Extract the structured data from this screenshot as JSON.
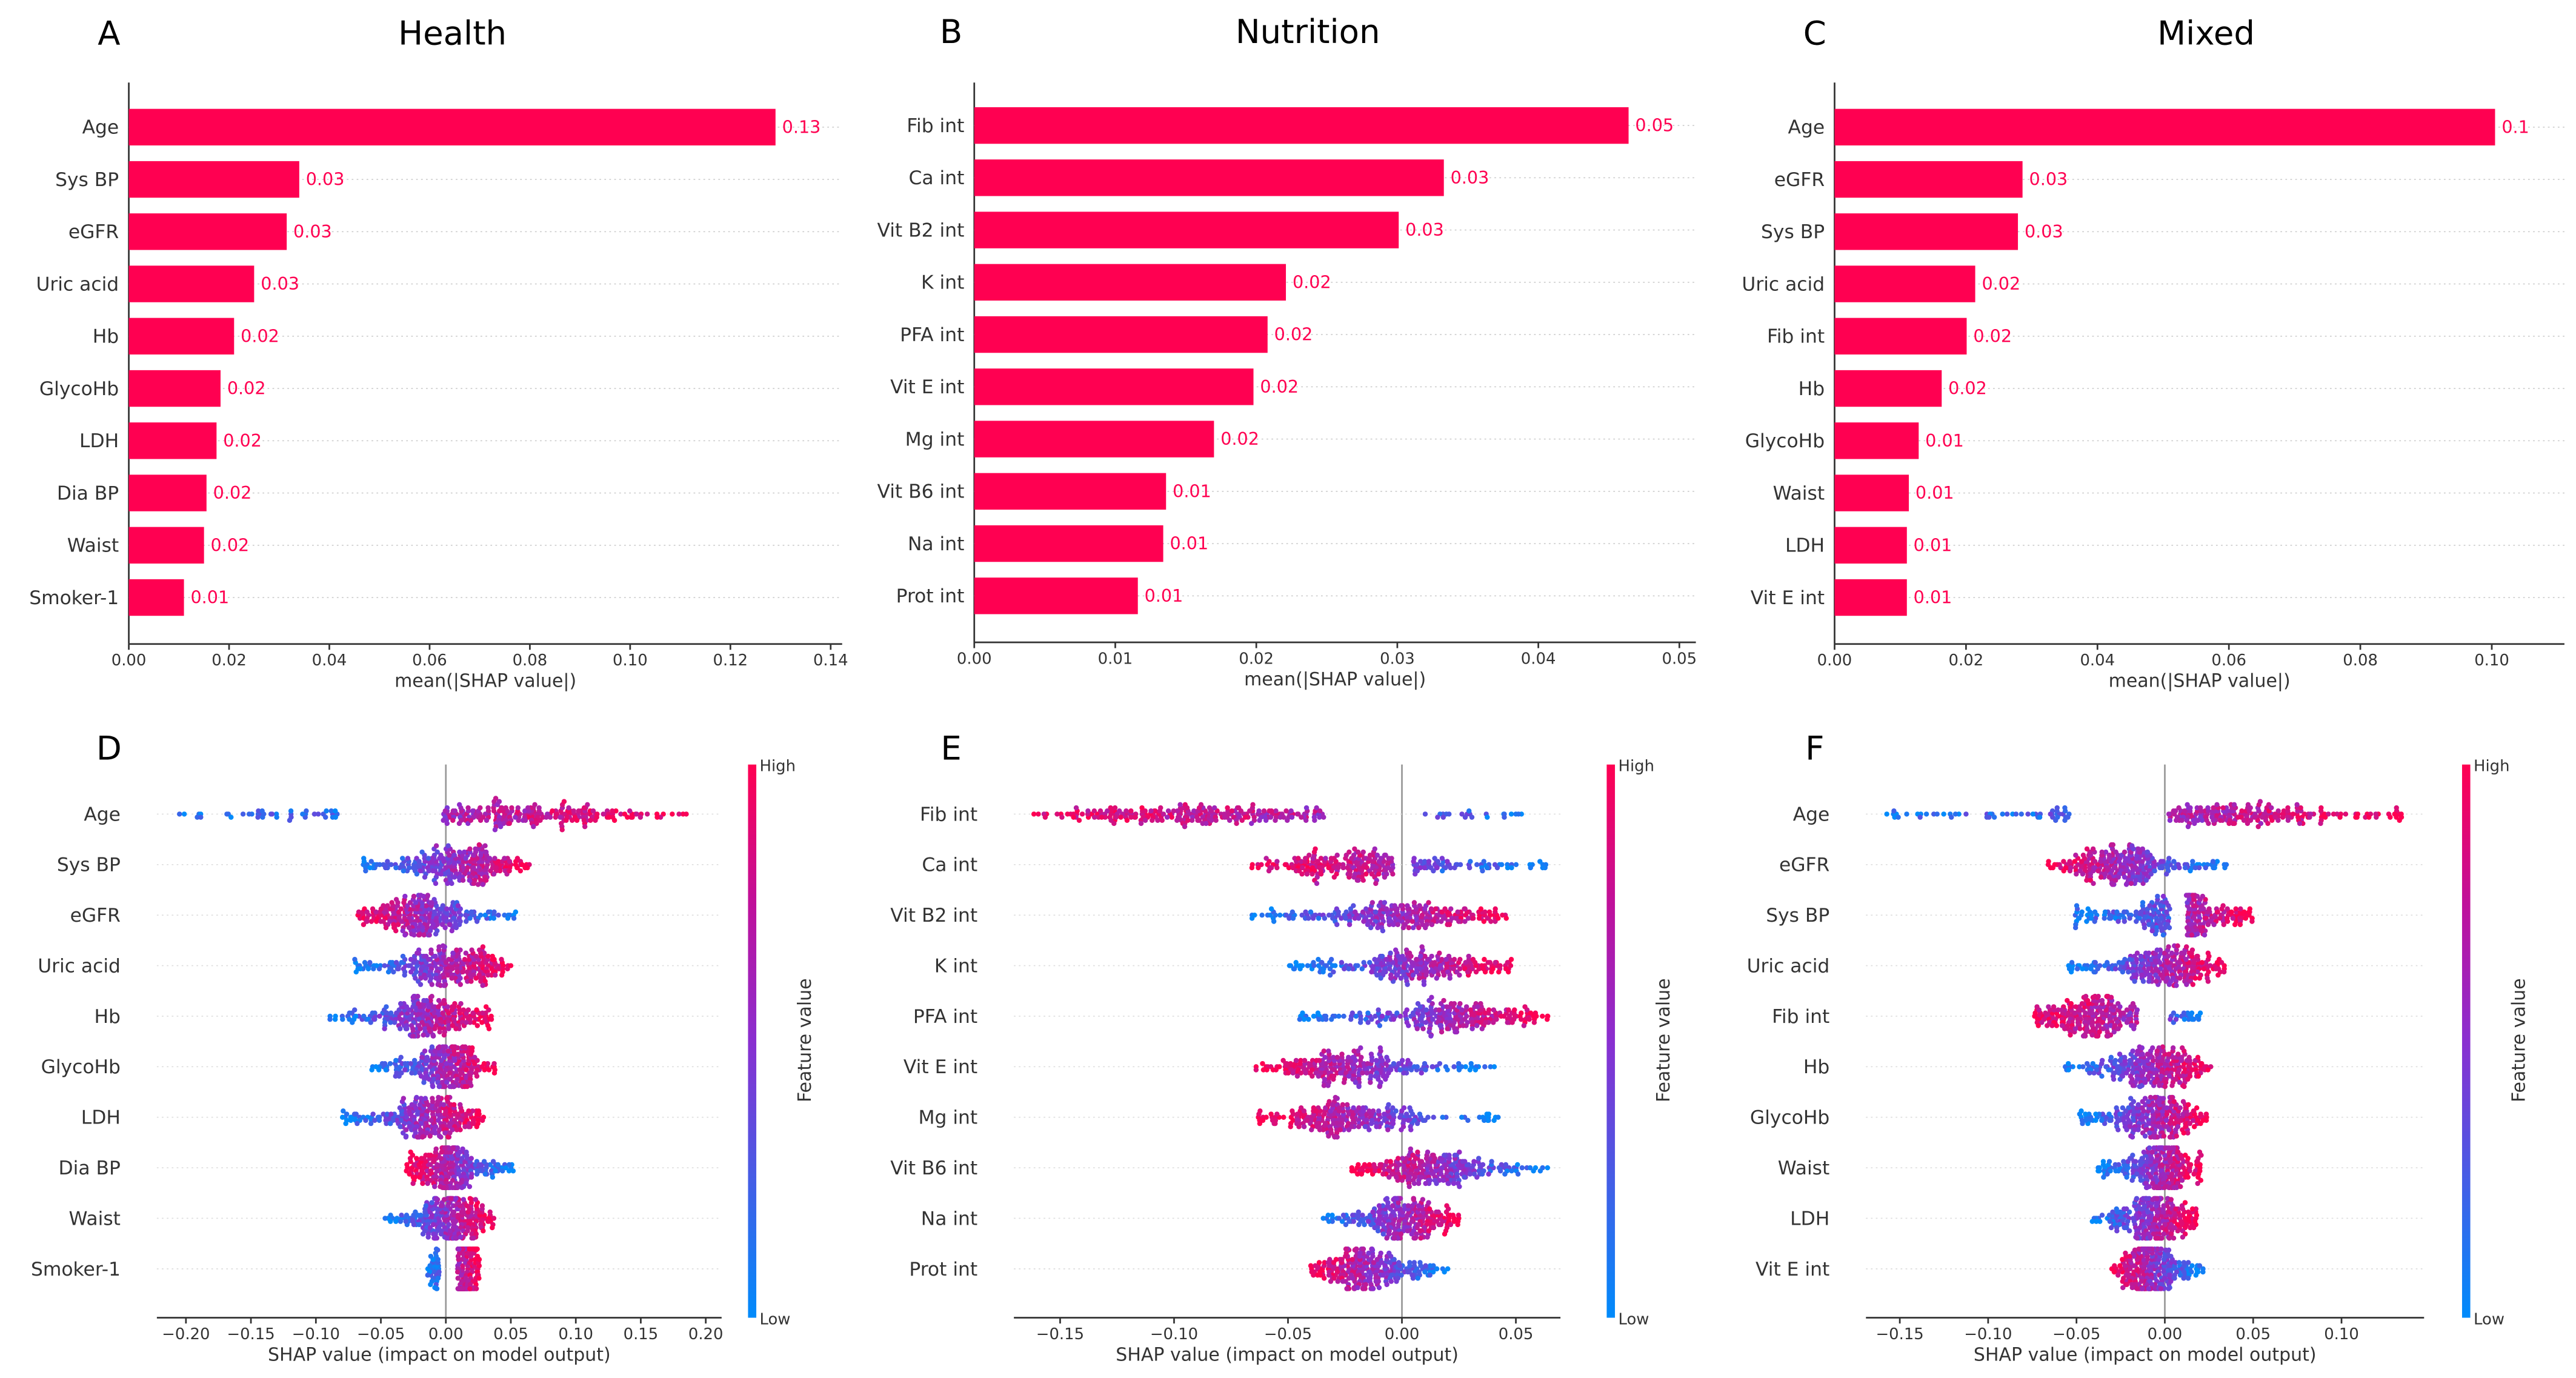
{
  "colors": {
    "bar": "#ff0051",
    "low": "#008bfb",
    "high": "#ff0051",
    "axis": "#333333",
    "zero_line": "#999999"
  },
  "chart_data": [
    {
      "panel": "A",
      "title": "Health",
      "type": "bar",
      "xlabel": "mean(|SHAP value|)",
      "xlim": [
        0,
        0.14
      ],
      "xticks": [
        "0.00",
        "0.02",
        "0.04",
        "0.06",
        "0.08",
        "0.10",
        "0.12",
        "0.14"
      ],
      "categories": [
        "Age",
        "Sys BP",
        "eGFR",
        "Uric acid",
        "Hb",
        "GlycoHb",
        "LDH",
        "Dia BP",
        "Waist",
        "Smoker-1"
      ],
      "values": [
        0.129,
        0.034,
        0.0315,
        0.025,
        0.021,
        0.0183,
        0.0175,
        0.0155,
        0.015,
        0.011
      ],
      "labels": [
        "0.13",
        "0.03",
        "0.03",
        "0.03",
        "0.02",
        "0.02",
        "0.02",
        "0.02",
        "0.02",
        "0.01"
      ]
    },
    {
      "panel": "B",
      "title": "Nutrition",
      "type": "bar",
      "xlabel": "mean(|SHAP value|)",
      "xlim": [
        0,
        0.05
      ],
      "xticks": [
        "0.00",
        "0.01",
        "0.02",
        "0.03",
        "0.04",
        "0.05"
      ],
      "categories": [
        "Fib int",
        "Ca int",
        "Vit B2 int",
        "K int",
        "PFA int",
        "Vit E int",
        "Mg int",
        "Vit B6 int",
        "Na int",
        "Prot int"
      ],
      "values": [
        0.0464,
        0.0333,
        0.0301,
        0.0221,
        0.0208,
        0.0198,
        0.017,
        0.0136,
        0.0134,
        0.0116
      ],
      "labels": [
        "0.05",
        "0.03",
        "0.03",
        "0.02",
        "0.02",
        "0.02",
        "0.02",
        "0.01",
        "0.01",
        "0.01"
      ]
    },
    {
      "panel": "C",
      "title": "Mixed",
      "type": "bar",
      "xlabel": "mean(|SHAP value|)",
      "xlim": [
        0,
        0.11
      ],
      "xticks": [
        "0.00",
        "0.02",
        "0.04",
        "0.06",
        "0.08",
        "0.10"
      ],
      "categories": [
        "Age",
        "eGFR",
        "Sys BP",
        "Uric acid",
        "Fib int",
        "Hb",
        "GlycoHb",
        "Waist",
        "LDH",
        "Vit E int"
      ],
      "values": [
        0.1005,
        0.0286,
        0.0279,
        0.0214,
        0.0201,
        0.0163,
        0.0128,
        0.0113,
        0.011,
        0.011
      ],
      "labels": [
        "0.1",
        "0.03",
        "0.03",
        "0.02",
        "0.02",
        "0.02",
        "0.01",
        "0.01",
        "0.01",
        "0.01"
      ]
    },
    {
      "panel": "D",
      "type": "scatter",
      "subtype": "beeswarm",
      "xlabel": "SHAP value (impact on model output)",
      "xlim": [
        -0.225,
        0.205
      ],
      "xticks": [
        "-0.20",
        "-0.15",
        "-0.10",
        "-0.05",
        "0.00",
        "0.05",
        "0.10",
        "0.15",
        "0.20"
      ],
      "colorbar": {
        "label": "Feature value",
        "high": "High",
        "low": "Low"
      },
      "features": [
        {
          "name": "Age",
          "range": [
            -0.205,
            0.185
          ],
          "gap": [
            -0.078,
            -0.002
          ],
          "high_side": "positive"
        },
        {
          "name": "Sys BP",
          "range": [
            -0.066,
            0.066
          ],
          "high_side": "positive"
        },
        {
          "name": "eGFR",
          "range": [
            -0.072,
            0.056
          ],
          "high_side": "negative"
        },
        {
          "name": "Uric acid",
          "range": [
            -0.072,
            0.05
          ],
          "high_side": "positive"
        },
        {
          "name": "Hb",
          "range": [
            -0.09,
            0.036
          ],
          "high_side": "positive"
        },
        {
          "name": "GlycoHb",
          "range": [
            -0.058,
            0.038
          ],
          "high_side": "positive"
        },
        {
          "name": "LDH",
          "range": [
            -0.08,
            0.029
          ],
          "high_side": "positive"
        },
        {
          "name": "Dia BP",
          "range": [
            -0.031,
            0.055
          ],
          "high_side": "negative"
        },
        {
          "name": "Waist",
          "range": [
            -0.047,
            0.038
          ],
          "high_side": "positive"
        },
        {
          "name": "Smoker-1",
          "range": [
            -0.014,
            0.026
          ],
          "gap": [
            -0.005,
            0.009
          ],
          "high_side": "positive"
        }
      ]
    },
    {
      "panel": "E",
      "type": "scatter",
      "subtype": "beeswarm",
      "xlabel": "SHAP value (impact on model output)",
      "xlim": [
        -0.17,
        0.07
      ],
      "xticks": [
        "-0.15",
        "-0.10",
        "-0.05",
        "0.00",
        "0.05"
      ],
      "colorbar": {
        "label": "Feature value",
        "high": "High",
        "low": "Low"
      },
      "features": [
        {
          "name": "Fib int",
          "range": [
            -0.162,
            0.054
          ],
          "gap": [
            -0.034,
            0.008
          ],
          "high_side": "negative"
        },
        {
          "name": "Ca int",
          "range": [
            -0.066,
            0.064
          ],
          "gap": [
            -0.004,
            0.004
          ],
          "high_side": "negative"
        },
        {
          "name": "Vit B2 int",
          "range": [
            -0.068,
            0.048
          ],
          "high_side": "positive"
        },
        {
          "name": "K int",
          "range": [
            -0.05,
            0.048
          ],
          "high_side": "positive"
        },
        {
          "name": "PFA int",
          "range": [
            -0.045,
            0.064
          ],
          "high_side": "positive"
        },
        {
          "name": "Vit E int",
          "range": [
            -0.064,
            0.042
          ],
          "high_side": "negative"
        },
        {
          "name": "Mg int",
          "range": [
            -0.064,
            0.043
          ],
          "high_side": "negative"
        },
        {
          "name": "Vit B6 int",
          "range": [
            -0.022,
            0.064
          ],
          "high_side": "negative"
        },
        {
          "name": "Na int",
          "range": [
            -0.035,
            0.025
          ],
          "high_side": "positive"
        },
        {
          "name": "Prot int",
          "range": [
            -0.04,
            0.021
          ],
          "high_side": "negative"
        }
      ]
    },
    {
      "panel": "F",
      "type": "scatter",
      "subtype": "beeswarm",
      "xlabel": "SHAP value (impact on model output)",
      "xlim": [
        -0.17,
        0.147
      ],
      "xticks": [
        "-0.15",
        "-0.10",
        "-0.05",
        "0.00",
        "0.05",
        "0.10"
      ],
      "colorbar": {
        "label": "Feature value",
        "high": "High",
        "low": "Low"
      },
      "features": [
        {
          "name": "Age",
          "range": [
            -0.158,
            0.135
          ],
          "gap": [
            -0.053,
            0.002
          ],
          "high_side": "positive"
        },
        {
          "name": "eGFR",
          "range": [
            -0.066,
            0.036
          ],
          "high_side": "negative"
        },
        {
          "name": "Sys BP",
          "range": [
            -0.051,
            0.05
          ],
          "gap": [
            0.003,
            0.012
          ],
          "high_side": "positive"
        },
        {
          "name": "Uric acid",
          "range": [
            -0.056,
            0.034
          ],
          "high_side": "positive"
        },
        {
          "name": "Fib int",
          "range": [
            -0.074,
            0.021
          ],
          "gap": [
            -0.015,
            0.003
          ],
          "high_side": "negative"
        },
        {
          "name": "Hb",
          "range": [
            -0.057,
            0.026
          ],
          "high_side": "positive"
        },
        {
          "name": "GlycoHb",
          "range": [
            -0.049,
            0.024
          ],
          "high_side": "positive"
        },
        {
          "name": "Waist",
          "range": [
            -0.038,
            0.021
          ],
          "high_side": "positive"
        },
        {
          "name": "LDH",
          "range": [
            -0.042,
            0.018
          ],
          "high_side": "positive"
        },
        {
          "name": "Vit E int",
          "range": [
            -0.03,
            0.022
          ],
          "high_side": "negative"
        }
      ]
    }
  ]
}
